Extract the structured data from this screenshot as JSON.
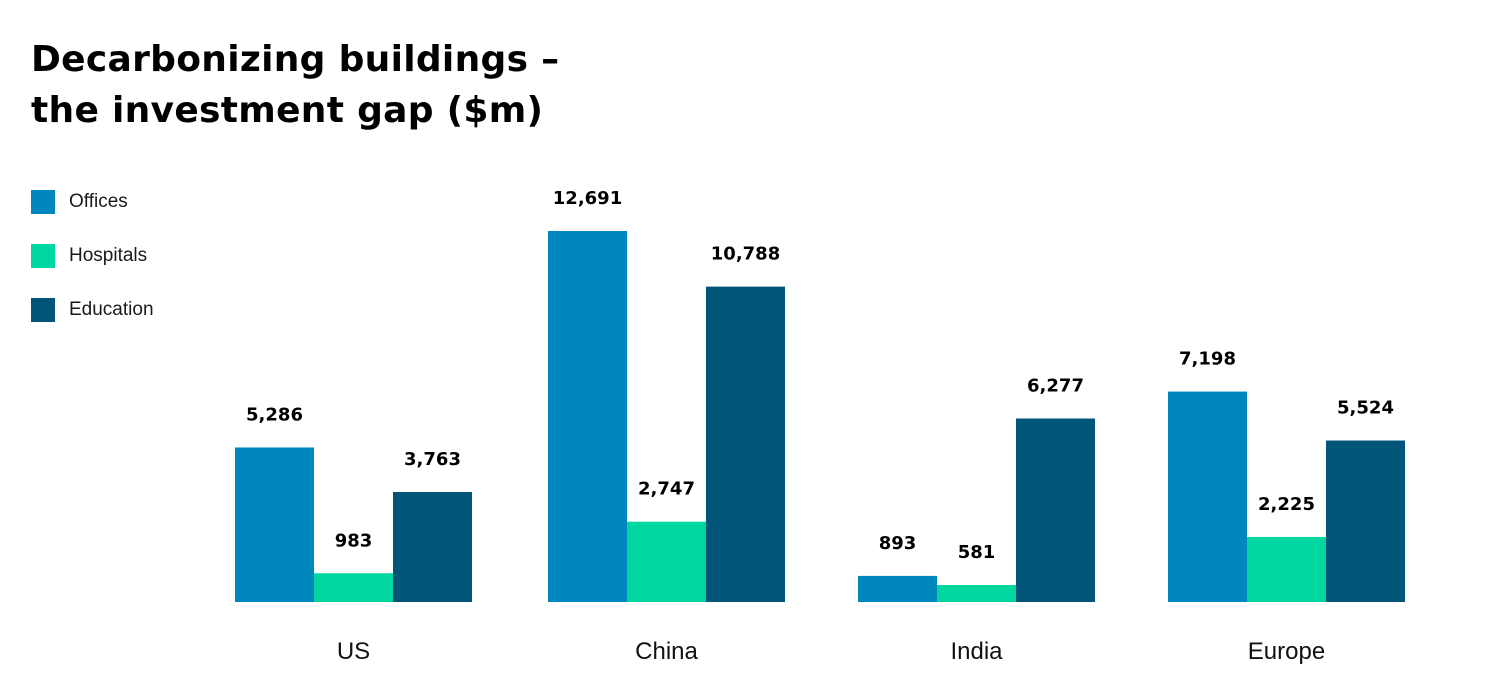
{
  "title": {
    "line1": "Decarbonizing buildings –",
    "line2": "the investment gap ($m)"
  },
  "colors": {
    "offices": "#0087BE",
    "hospitals": "#00D7A0",
    "education": "#005578"
  },
  "chart_data": {
    "type": "bar",
    "title": "Decarbonizing buildings – the investment gap ($m)",
    "categories": [
      "US",
      "China",
      "India",
      "Europe"
    ],
    "series": [
      {
        "name": "Offices",
        "color": "#0087BE",
        "values": [
          5286,
          12691,
          893,
          7198
        ],
        "labels": [
          "5,286",
          "12,691",
          "893",
          "7,198"
        ]
      },
      {
        "name": "Hospitals",
        "color": "#00D7A0",
        "values": [
          983,
          2747,
          581,
          2225
        ],
        "labels": [
          "983",
          "2,747",
          "581",
          "2,225"
        ]
      },
      {
        "name": "Education",
        "color": "#005578",
        "values": [
          3763,
          10788,
          6277,
          5524
        ],
        "labels": [
          "3,763",
          "10,788",
          "6,277",
          "5,524"
        ]
      }
    ],
    "legend": "left",
    "grid": false,
    "ylim": [
      0,
      12691
    ]
  }
}
